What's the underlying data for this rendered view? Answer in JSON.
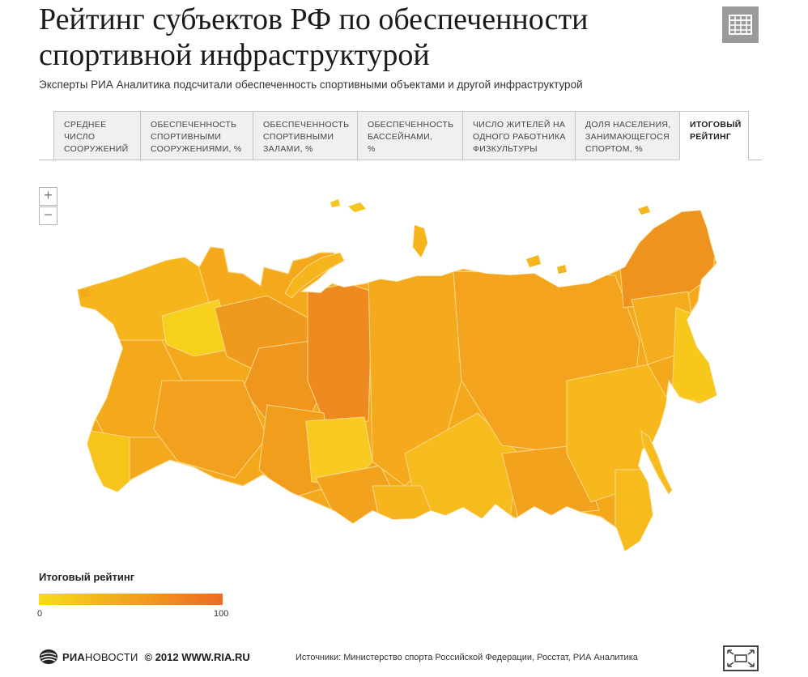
{
  "header": {
    "title": "Рейтинг субъектов РФ по обеспеченности спортивной инфраструктурой",
    "subtitle": "Эксперты РИА Аналитика подсчитали обеспеченность спортивными объектами и другой инфраструктурой",
    "table_button_icon": "table-icon"
  },
  "tabs": [
    {
      "label": "Среднее\nчисло\nсооружений",
      "active": false
    },
    {
      "label": "Обеспеченность\nспортивными\nсооружениями, %",
      "active": false
    },
    {
      "label": "Обеспеченность\nспортивными\nзалами, %",
      "active": false
    },
    {
      "label": "Обеспеченность\nбассейнами,\n%",
      "active": false
    },
    {
      "label": "Число жителей на\nодного работника\nфизкультуры",
      "active": false
    },
    {
      "label": "Доля населения,\nзанимающегося\nспортом, %",
      "active": false
    },
    {
      "label": "Итоговый\nрейтинг",
      "active": true
    }
  ],
  "zoom": {
    "in_label": "+",
    "out_label": "−"
  },
  "legend": {
    "title": "Итоговый рейтинг",
    "min_label": "0",
    "max_label": "100",
    "min_value": 0,
    "max_value": 100,
    "color_low": "#f7dc1a",
    "color_high": "#ed6a22"
  },
  "footer": {
    "logo_bold": "РИА",
    "logo_light": "НОВОСТИ",
    "copyright": "© 2012 WWW.RIA.RU",
    "sources": "Источники: Министерство спорта Российской Федерации, Росстат, РИА Аналитика",
    "fullscreen_icon": "fullscreen-icon"
  },
  "colors": {
    "map_fill_mid": "#f4a81c",
    "map_fill_dark": "#ee8a1f",
    "map_fill_light": "#f7c41c",
    "map_border": "#f8d98a"
  }
}
